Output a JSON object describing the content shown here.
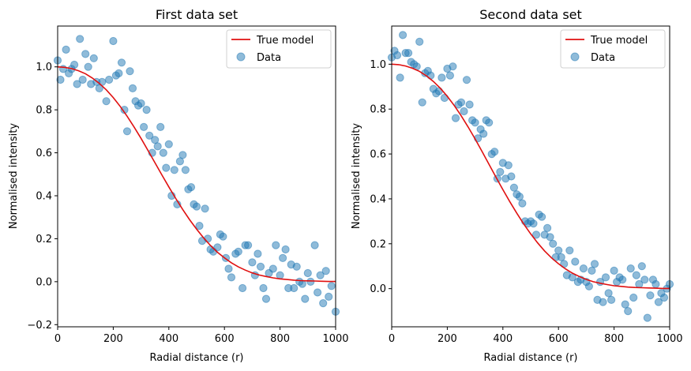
{
  "chart_data": [
    {
      "type": "scatter",
      "title": "First data set",
      "xlabel": "Radial distance (r)",
      "ylabel": "Normalised intensity",
      "xlim": [
        0,
        1000
      ],
      "ylim": [
        -0.21,
        1.19
      ],
      "xticks": [
        0,
        200,
        400,
        600,
        800,
        1000
      ],
      "xtick_labels": [
        "0",
        "200",
        "400",
        "600",
        "800",
        "1000"
      ],
      "yticks": [
        -0.2,
        0.0,
        0.2,
        0.4,
        0.6,
        0.8,
        1.0
      ],
      "ytick_labels": [
        "−0.2",
        "0.0",
        "0.2",
        "0.4",
        "0.6",
        "0.8",
        "1.0"
      ],
      "grid": false,
      "legend": {
        "position": "top-right",
        "entries": [
          {
            "label": "True model",
            "kind": "line",
            "color": "#e01010"
          },
          {
            "label": "Data",
            "kind": "marker",
            "color": "#1f77b4"
          }
        ]
      },
      "model": {
        "name": "True model",
        "color": "#e01010",
        "x": [
          0,
          25,
          50,
          75,
          100,
          125,
          150,
          175,
          200,
          225,
          250,
          275,
          300,
          325,
          350,
          375,
          400,
          425,
          450,
          475,
          500,
          525,
          550,
          575,
          600,
          625,
          650,
          675,
          700,
          725,
          750,
          775,
          800,
          825,
          850,
          875,
          900,
          925,
          950,
          975,
          1000
        ],
        "y": [
          1.0,
          0.998,
          0.992,
          0.982,
          0.968,
          0.948,
          0.923,
          0.893,
          0.857,
          0.816,
          0.77,
          0.72,
          0.667,
          0.611,
          0.554,
          0.497,
          0.441,
          0.387,
          0.336,
          0.288,
          0.244,
          0.204,
          0.168,
          0.137,
          0.111,
          0.088,
          0.069,
          0.054,
          0.041,
          0.031,
          0.024,
          0.018,
          0.013,
          0.01,
          0.007,
          0.005,
          0.004,
          0.003,
          0.002,
          0.001,
          0.001
        ]
      },
      "data": {
        "name": "Data",
        "color": "#1f77b4",
        "points": [
          [
            0,
            1.03
          ],
          [
            10,
            0.94
          ],
          [
            20,
            0.99
          ],
          [
            30,
            1.08
          ],
          [
            40,
            0.97
          ],
          [
            50,
            0.99
          ],
          [
            60,
            1.01
          ],
          [
            70,
            0.92
          ],
          [
            80,
            1.13
          ],
          [
            90,
            0.94
          ],
          [
            100,
            1.06
          ],
          [
            110,
            1.0
          ],
          [
            120,
            0.92
          ],
          [
            130,
            1.04
          ],
          [
            140,
            0.93
          ],
          [
            150,
            0.9
          ],
          [
            160,
            0.93
          ],
          [
            175,
            0.84
          ],
          [
            185,
            0.94
          ],
          [
            200,
            1.12
          ],
          [
            210,
            0.96
          ],
          [
            220,
            0.97
          ],
          [
            230,
            1.02
          ],
          [
            240,
            0.8
          ],
          [
            250,
            0.7
          ],
          [
            260,
            0.98
          ],
          [
            270,
            0.9
          ],
          [
            280,
            0.84
          ],
          [
            290,
            0.82
          ],
          [
            300,
            0.83
          ],
          [
            310,
            0.72
          ],
          [
            320,
            0.8
          ],
          [
            330,
            0.68
          ],
          [
            340,
            0.6
          ],
          [
            350,
            0.66
          ],
          [
            360,
            0.63
          ],
          [
            370,
            0.72
          ],
          [
            380,
            0.6
          ],
          [
            390,
            0.53
          ],
          [
            400,
            0.64
          ],
          [
            410,
            0.4
          ],
          [
            420,
            0.52
          ],
          [
            430,
            0.36
          ],
          [
            440,
            0.56
          ],
          [
            450,
            0.59
          ],
          [
            460,
            0.52
          ],
          [
            470,
            0.43
          ],
          [
            480,
            0.44
          ],
          [
            490,
            0.36
          ],
          [
            500,
            0.35
          ],
          [
            510,
            0.26
          ],
          [
            520,
            0.19
          ],
          [
            530,
            0.34
          ],
          [
            540,
            0.2
          ],
          [
            550,
            0.15
          ],
          [
            560,
            0.14
          ],
          [
            575,
            0.16
          ],
          [
            585,
            0.22
          ],
          [
            595,
            0.21
          ],
          [
            605,
            0.11
          ],
          [
            615,
            0.06
          ],
          [
            625,
            0.02
          ],
          [
            640,
            0.13
          ],
          [
            650,
            0.14
          ],
          [
            665,
            -0.03
          ],
          [
            675,
            0.17
          ],
          [
            685,
            0.17
          ],
          [
            700,
            0.09
          ],
          [
            710,
            0.03
          ],
          [
            720,
            0.13
          ],
          [
            730,
            0.07
          ],
          [
            740,
            -0.03
          ],
          [
            750,
            -0.08
          ],
          [
            760,
            0.04
          ],
          [
            775,
            0.06
          ],
          [
            785,
            0.17
          ],
          [
            800,
            0.03
          ],
          [
            810,
            0.11
          ],
          [
            820,
            0.15
          ],
          [
            830,
            -0.03
          ],
          [
            840,
            0.08
          ],
          [
            850,
            -0.03
          ],
          [
            860,
            0.07
          ],
          [
            870,
            0.0
          ],
          [
            880,
            -0.01
          ],
          [
            890,
            -0.08
          ],
          [
            900,
            0.04
          ],
          [
            910,
            0.0
          ],
          [
            925,
            0.17
          ],
          [
            935,
            -0.05
          ],
          [
            945,
            0.03
          ],
          [
            955,
            -0.1
          ],
          [
            965,
            0.05
          ],
          [
            975,
            -0.07
          ],
          [
            985,
            -0.02
          ],
          [
            1000,
            -0.14
          ]
        ]
      }
    },
    {
      "type": "scatter",
      "title": "Second data set",
      "xlabel": "Radial distance (r)",
      "ylabel": "Normalised intensity",
      "xlim": [
        0,
        1000
      ],
      "ylim": [
        -0.17,
        1.17
      ],
      "xticks": [
        0,
        200,
        400,
        600,
        800,
        1000
      ],
      "xtick_labels": [
        "0",
        "200",
        "400",
        "600",
        "800",
        "1000"
      ],
      "yticks": [
        0.0,
        0.2,
        0.4,
        0.6,
        0.8,
        1.0
      ],
      "ytick_labels": [
        "0.0",
        "0.2",
        "0.4",
        "0.6",
        "0.8",
        "1.0"
      ],
      "grid": false,
      "legend": {
        "position": "top-right",
        "entries": [
          {
            "label": "True model",
            "kind": "line",
            "color": "#e01010"
          },
          {
            "label": "Data",
            "kind": "marker",
            "color": "#1f77b4"
          }
        ]
      },
      "model": {
        "name": "True model",
        "color": "#e01010",
        "x": [
          0,
          25,
          50,
          75,
          100,
          125,
          150,
          175,
          200,
          225,
          250,
          275,
          300,
          325,
          350,
          375,
          400,
          425,
          450,
          475,
          500,
          525,
          550,
          575,
          600,
          625,
          650,
          675,
          700,
          725,
          750,
          775,
          800,
          825,
          850,
          875,
          900,
          925,
          950,
          975,
          1000
        ],
        "y": [
          1.0,
          0.998,
          0.992,
          0.982,
          0.968,
          0.948,
          0.923,
          0.893,
          0.857,
          0.816,
          0.77,
          0.72,
          0.667,
          0.611,
          0.554,
          0.497,
          0.441,
          0.387,
          0.336,
          0.288,
          0.244,
          0.204,
          0.168,
          0.137,
          0.111,
          0.088,
          0.069,
          0.054,
          0.041,
          0.031,
          0.024,
          0.018,
          0.013,
          0.01,
          0.007,
          0.005,
          0.004,
          0.003,
          0.002,
          0.001,
          0.001
        ]
      },
      "data": {
        "name": "Data",
        "color": "#1f77b4",
        "points": [
          [
            0,
            1.03
          ],
          [
            10,
            1.06
          ],
          [
            20,
            1.04
          ],
          [
            30,
            0.94
          ],
          [
            40,
            1.13
          ],
          [
            50,
            1.05
          ],
          [
            60,
            1.05
          ],
          [
            70,
            1.01
          ],
          [
            80,
            1.0
          ],
          [
            90,
            0.99
          ],
          [
            100,
            1.1
          ],
          [
            110,
            0.83
          ],
          [
            120,
            0.96
          ],
          [
            130,
            0.97
          ],
          [
            140,
            0.95
          ],
          [
            150,
            0.89
          ],
          [
            160,
            0.87
          ],
          [
            170,
            0.88
          ],
          [
            180,
            0.94
          ],
          [
            190,
            0.85
          ],
          [
            200,
            0.98
          ],
          [
            210,
            0.95
          ],
          [
            220,
            0.99
          ],
          [
            230,
            0.76
          ],
          [
            240,
            0.82
          ],
          [
            250,
            0.83
          ],
          [
            260,
            0.79
          ],
          [
            270,
            0.93
          ],
          [
            280,
            0.82
          ],
          [
            290,
            0.75
          ],
          [
            300,
            0.74
          ],
          [
            310,
            0.67
          ],
          [
            320,
            0.71
          ],
          [
            330,
            0.69
          ],
          [
            340,
            0.75
          ],
          [
            350,
            0.74
          ],
          [
            360,
            0.6
          ],
          [
            370,
            0.61
          ],
          [
            380,
            0.49
          ],
          [
            390,
            0.52
          ],
          [
            400,
            0.56
          ],
          [
            410,
            0.49
          ],
          [
            420,
            0.55
          ],
          [
            430,
            0.5
          ],
          [
            440,
            0.45
          ],
          [
            450,
            0.42
          ],
          [
            460,
            0.41
          ],
          [
            470,
            0.38
          ],
          [
            480,
            0.3
          ],
          [
            490,
            0.29
          ],
          [
            500,
            0.3
          ],
          [
            510,
            0.29
          ],
          [
            520,
            0.24
          ],
          [
            530,
            0.33
          ],
          [
            540,
            0.32
          ],
          [
            550,
            0.24
          ],
          [
            560,
            0.27
          ],
          [
            570,
            0.23
          ],
          [
            580,
            0.2
          ],
          [
            590,
            0.14
          ],
          [
            600,
            0.17
          ],
          [
            610,
            0.14
          ],
          [
            620,
            0.11
          ],
          [
            630,
            0.06
          ],
          [
            640,
            0.17
          ],
          [
            650,
            0.05
          ],
          [
            660,
            0.12
          ],
          [
            670,
            0.03
          ],
          [
            680,
            0.04
          ],
          [
            690,
            0.09
          ],
          [
            700,
            0.03
          ],
          [
            710,
            0.01
          ],
          [
            720,
            0.08
          ],
          [
            730,
            0.11
          ],
          [
            740,
            -0.05
          ],
          [
            750,
            0.03
          ],
          [
            760,
            -0.06
          ],
          [
            770,
            0.05
          ],
          [
            780,
            -0.02
          ],
          [
            790,
            -0.05
          ],
          [
            800,
            0.08
          ],
          [
            810,
            0.03
          ],
          [
            820,
            0.05
          ],
          [
            830,
            0.04
          ],
          [
            840,
            -0.07
          ],
          [
            850,
            -0.1
          ],
          [
            860,
            0.09
          ],
          [
            870,
            -0.04
          ],
          [
            880,
            0.06
          ],
          [
            890,
            0.02
          ],
          [
            900,
            0.1
          ],
          [
            910,
            0.04
          ],
          [
            920,
            -0.13
          ],
          [
            930,
            -0.03
          ],
          [
            940,
            0.04
          ],
          [
            950,
            0.02
          ],
          [
            960,
            -0.06
          ],
          [
            970,
            -0.02
          ],
          [
            980,
            -0.04
          ],
          [
            990,
            0.0
          ],
          [
            1000,
            0.02
          ]
        ]
      }
    }
  ]
}
